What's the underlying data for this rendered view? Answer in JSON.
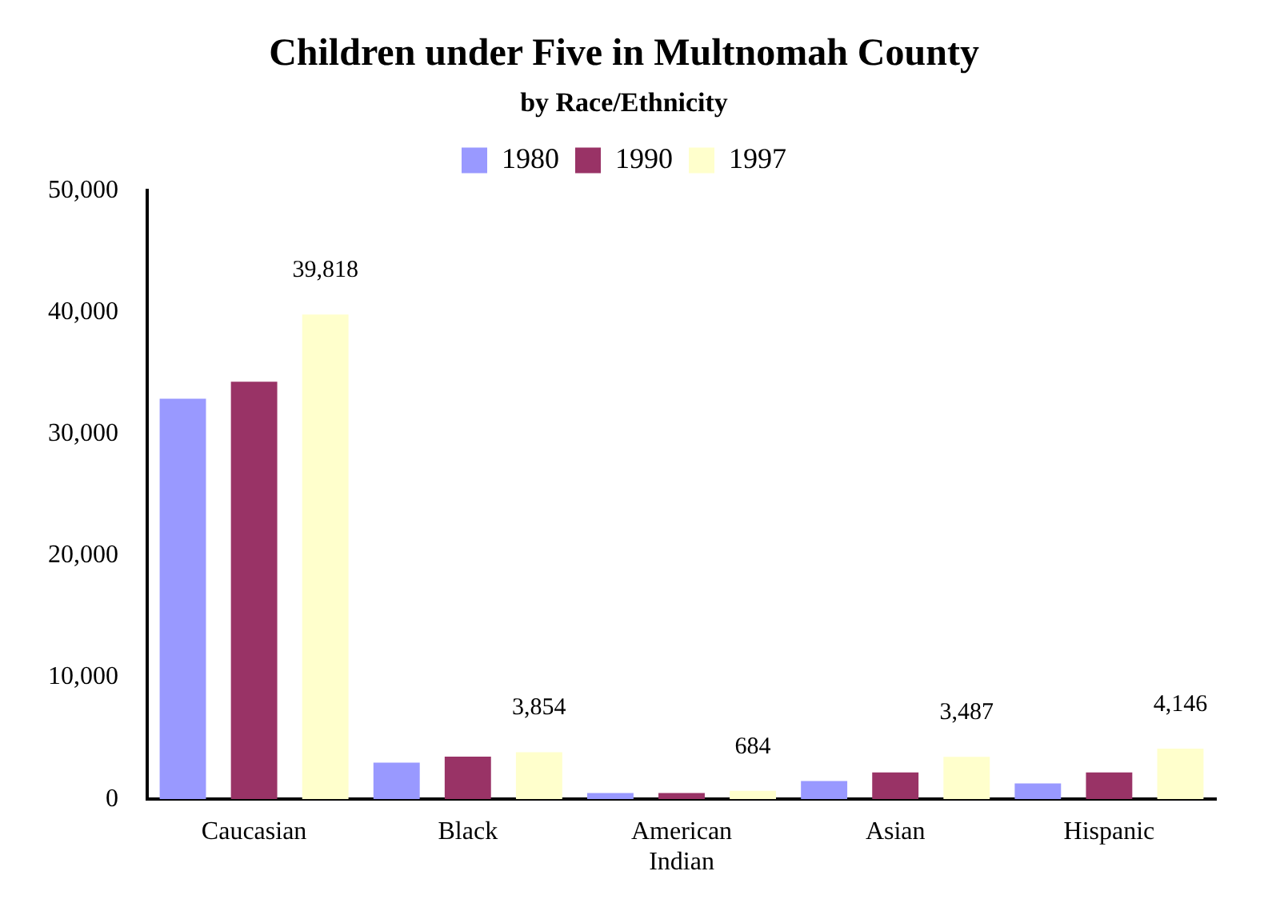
{
  "chart_data": {
    "type": "bar",
    "title": "Children under Five in Multnomah County",
    "subtitle": "by Race/Ethnicity",
    "categories": [
      "Caucasian",
      "Black",
      "American Indian",
      "Asian",
      "Hispanic"
    ],
    "series": [
      {
        "name": "1980",
        "color": "#9999ff",
        "values": [
          32900,
          3000,
          500,
          1500,
          1300
        ]
      },
      {
        "name": "1990",
        "color": "#993366",
        "values": [
          34300,
          3500,
          500,
          2200,
          2200
        ]
      },
      {
        "name": "1997",
        "color": "#ffffcc",
        "values": [
          39818,
          3854,
          684,
          3487,
          4146
        ],
        "value_labels": [
          "39,818",
          "3,854",
          "684",
          "3,487",
          "4,146"
        ]
      }
    ],
    "ylim": [
      0,
      50000
    ],
    "yticks": [
      0,
      {
        "value": 10000,
        "label": "10,000"
      },
      {
        "value": 20000,
        "label": "20,000"
      },
      {
        "value": 30000,
        "label": "30,000"
      },
      {
        "value": 40000,
        "label": "40,000"
      },
      {
        "value": 50000,
        "label": "50,000"
      }
    ],
    "grid": false,
    "legend": "top"
  }
}
